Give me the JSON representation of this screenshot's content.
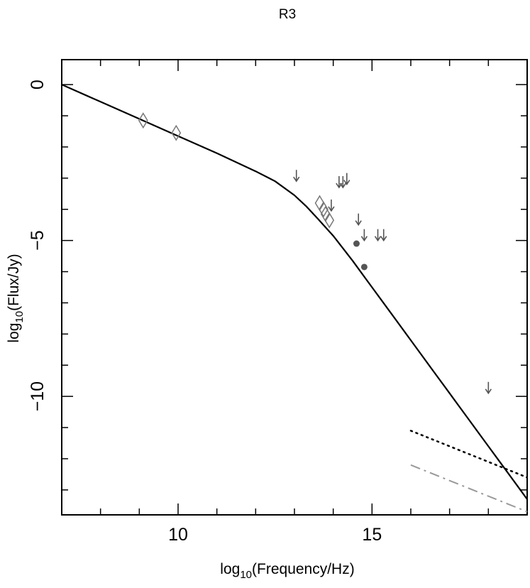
{
  "chart_data": {
    "type": "scatter",
    "title": "R3",
    "xlabel": {
      "pre": "log",
      "sub": "10",
      "post": "(Frequency/Hz)"
    },
    "ylabel": {
      "pre": "log",
      "sub": "10",
      "post": "(Flux/Jy)"
    },
    "xlim": [
      7,
      19
    ],
    "ylim": [
      -13.8,
      0.8
    ],
    "x_ticks": [
      10,
      15
    ],
    "x_tick_labels": [
      "10",
      "15"
    ],
    "y_ticks": [
      0,
      -5,
      -10
    ],
    "y_tick_labels": [
      "0",
      "−5",
      "−10"
    ],
    "x_minor_ticks": [
      8,
      9,
      10,
      11,
      12,
      13,
      14,
      15,
      16,
      17,
      18
    ],
    "y_minor_ticks": [
      -1,
      -2,
      -3,
      -4,
      -6,
      -7,
      -8,
      -9,
      -11,
      -12,
      -13
    ],
    "grid": false,
    "series": [
      {
        "kind": "solid-line",
        "color": "#000000",
        "x": [
          7.0,
          8.0,
          9.0,
          10.0,
          11.0,
          12.0,
          12.5,
          13.0,
          13.3,
          13.6,
          14.0,
          14.5,
          15.0,
          15.5,
          16.0,
          16.5,
          17.0,
          17.5,
          18.0,
          18.5,
          19.0
        ],
        "y": [
          0.0,
          -0.55,
          -1.1,
          -1.65,
          -2.2,
          -2.78,
          -3.1,
          -3.55,
          -3.9,
          -4.3,
          -4.85,
          -5.65,
          -6.5,
          -7.35,
          -8.2,
          -9.05,
          -9.9,
          -10.75,
          -11.6,
          -12.45,
          -13.3
        ]
      },
      {
        "kind": "dotted-line",
        "color": "#000000",
        "x": [
          16.0,
          19.0
        ],
        "y": [
          -11.1,
          -12.6
        ]
      },
      {
        "kind": "dash-dot-line",
        "color": "#999999",
        "x": [
          16.0,
          19.0
        ],
        "y": [
          -12.2,
          -13.7
        ]
      },
      {
        "kind": "diamond-markers",
        "color": "#777777",
        "x": [
          9.1,
          9.95,
          13.65,
          13.75,
          13.8,
          13.9
        ],
        "y": [
          -1.15,
          -1.55,
          -3.8,
          -4.0,
          -4.15,
          -4.35
        ]
      },
      {
        "kind": "filled-circle-markers",
        "color": "#555555",
        "x": [
          14.6,
          14.8
        ],
        "y": [
          -5.1,
          -5.85
        ]
      },
      {
        "kind": "upper-limit-arrows",
        "color": "#555555",
        "x": [
          13.05,
          14.15,
          14.25,
          14.35,
          13.95,
          14.65,
          14.8,
          15.15,
          15.3,
          18.0
        ],
        "y": [
          -3.1,
          -3.3,
          -3.3,
          -3.2,
          -4.05,
          -4.5,
          -5.0,
          -5.0,
          -5.0,
          -9.9
        ]
      }
    ]
  }
}
